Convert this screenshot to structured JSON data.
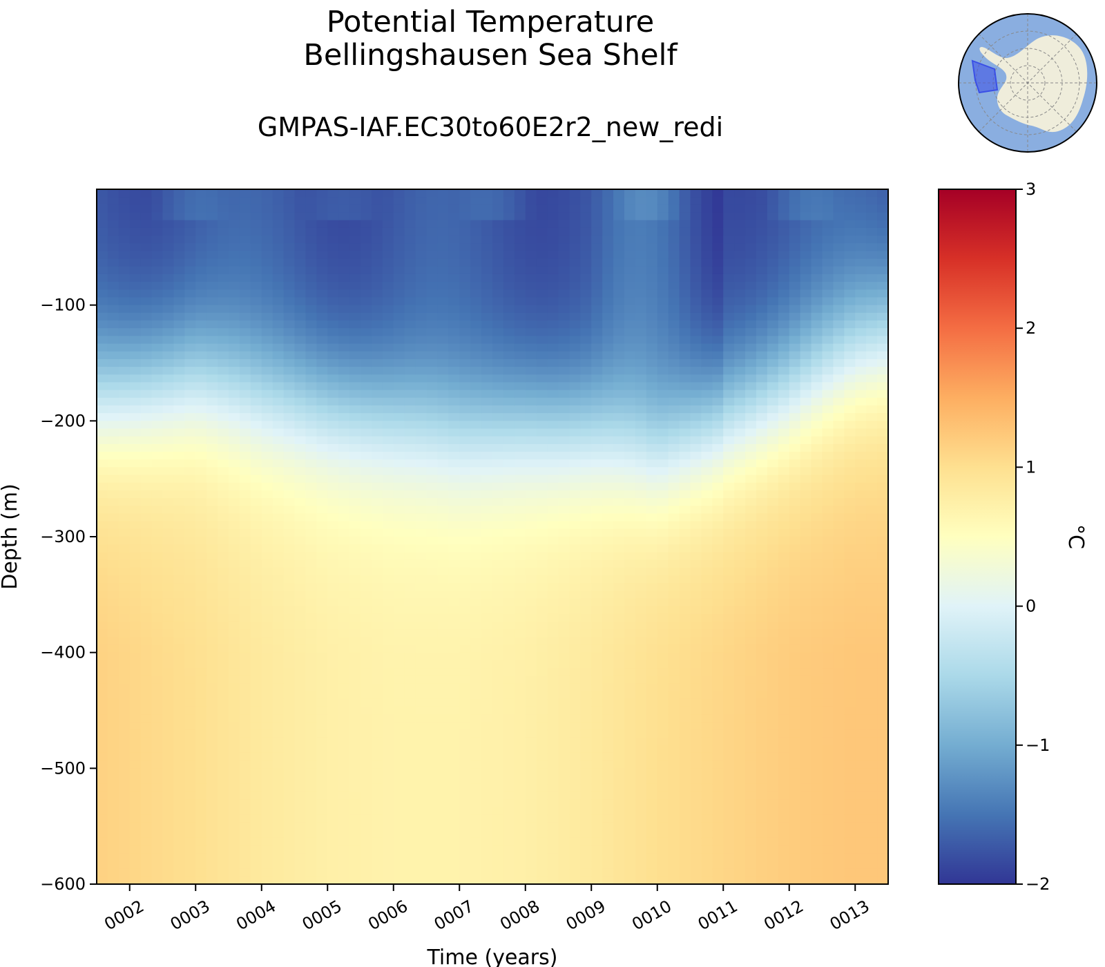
{
  "chart_data": {
    "type": "heatmap",
    "title": "Potential Temperature",
    "subtitle_region": "Bellingshausen Sea Shelf",
    "run_name": "GMPAS-IAF.EC30to60E2r2_new_redi",
    "xlabel": "Time (years)",
    "ylabel": "Depth (m)",
    "colorbar_label": "°C",
    "x_ticks": [
      "0002",
      "0003",
      "0004",
      "0005",
      "0006",
      "0007",
      "0008",
      "0009",
      "0010",
      "0011",
      "0012",
      "0013"
    ],
    "x_range": [
      1.5,
      13.5
    ],
    "y_ticks": [
      -100,
      -200,
      -300,
      -400,
      -500,
      -600
    ],
    "y_tick_labels": [
      "−100",
      "−200",
      "−300",
      "−400",
      "−500",
      "−600"
    ],
    "y_range": [
      -600,
      0
    ],
    "colorbar_ticks": [
      -2,
      -1,
      0,
      1,
      2,
      3
    ],
    "colorbar_tick_labels": [
      "−2",
      "−1",
      "0",
      "1",
      "2",
      "3"
    ],
    "colorbar_range": [
      -2,
      3
    ],
    "colormap": "RdYlBu_r",
    "colormap_stops": [
      "#313695",
      "#4575b4",
      "#74add1",
      "#abd9e9",
      "#e0f3f8",
      "#ffffbf",
      "#fee090",
      "#fdae61",
      "#f46d43",
      "#d73027",
      "#a50026"
    ],
    "thermocline_depth_by_year": {
      "years": [
        1.5,
        2,
        3,
        4,
        5,
        6,
        7,
        8,
        9,
        10,
        11,
        12,
        13,
        13.5
      ],
      "depth_m": [
        -175,
        -170,
        -160,
        -175,
        -185,
        -195,
        -205,
        -200,
        -205,
        -225,
        -195,
        -170,
        -135,
        -125
      ]
    },
    "deep_temperature_by_year": {
      "years": [
        1.5,
        2,
        3,
        4,
        5,
        6,
        7,
        8,
        9,
        10,
        11,
        12,
        13,
        13.5
      ],
      "temp_c_400m": [
        1.15,
        1.1,
        1.0,
        0.85,
        0.75,
        0.7,
        0.7,
        0.75,
        0.85,
        1.0,
        1.1,
        1.2,
        1.25,
        1.25
      ]
    }
  },
  "inset": {
    "ocean_color": "#8aaee0",
    "land_color": "#efeddb",
    "region_color": "#3a4fe6"
  }
}
